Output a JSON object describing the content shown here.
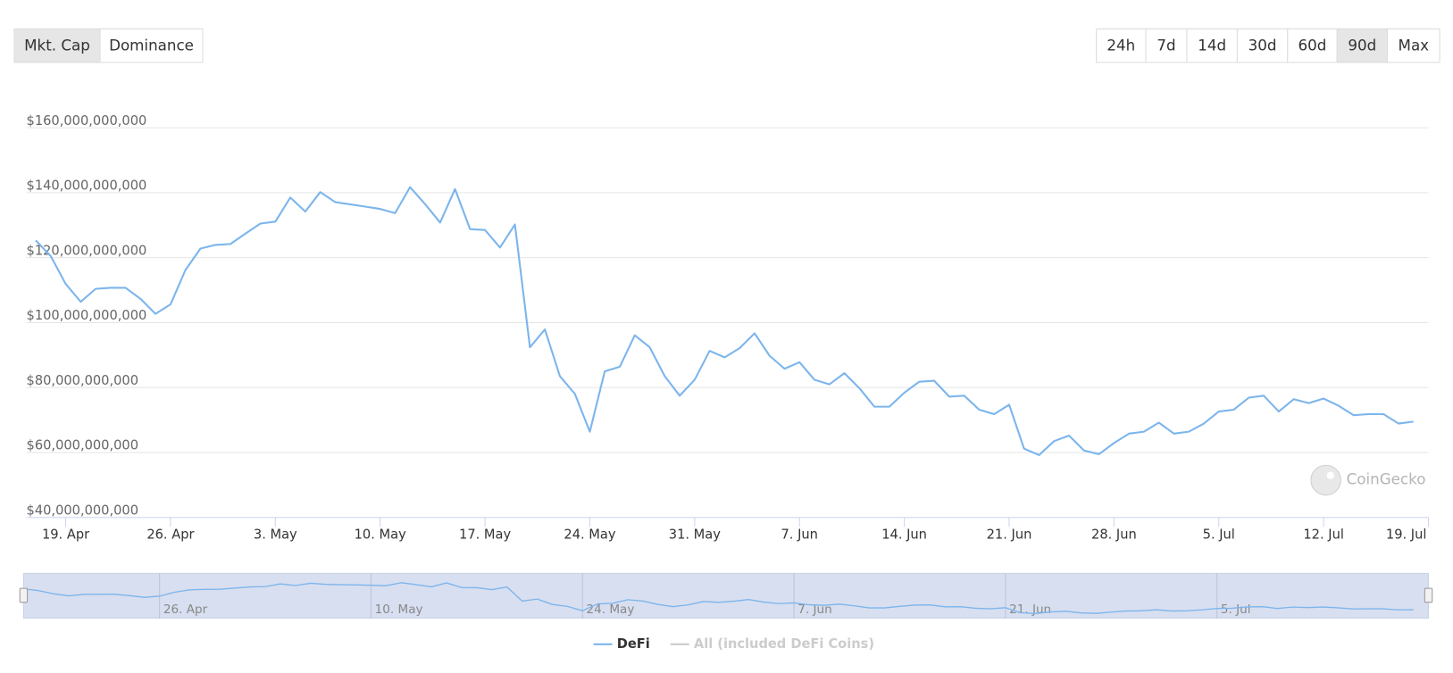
{
  "controls": {
    "metric_tabs": [
      "Mkt. Cap",
      "Dominance"
    ],
    "active_metric": 0,
    "range_tabs": [
      "24h",
      "7d",
      "14d",
      "30d",
      "60d",
      "90d",
      "Max"
    ],
    "active_range": 5
  },
  "chart_data": {
    "type": "line",
    "x": [
      "17. Apr",
      "18. Apr",
      "19. Apr",
      "20. Apr",
      "21. Apr",
      "22. Apr",
      "23. Apr",
      "24. Apr",
      "25. Apr",
      "26. Apr",
      "27. Apr",
      "28. Apr",
      "29. Apr",
      "30. Apr",
      "1. May",
      "2. May",
      "3. May",
      "4. May",
      "5. May",
      "6. May",
      "7. May",
      "8. May",
      "9. May",
      "10. May",
      "11. May",
      "12. May",
      "13. May",
      "14. May",
      "15. May",
      "16. May",
      "17. May",
      "18. May",
      "19. May",
      "20. May",
      "21. May",
      "22. May",
      "23. May",
      "24. May",
      "25. May",
      "26. May",
      "27. May",
      "28. May",
      "29. May",
      "30. May",
      "31. May",
      "1. Jun",
      "2. Jun",
      "3. Jun",
      "4. Jun",
      "5. Jun",
      "6. Jun",
      "7. Jun",
      "8. Jun",
      "9. Jun",
      "10. Jun",
      "11. Jun",
      "12. Jun",
      "13. Jun",
      "14. Jun",
      "15. Jun",
      "16. Jun",
      "17. Jun",
      "18. Jun",
      "19. Jun",
      "20. Jun",
      "21. Jun",
      "22. Jun",
      "23. Jun",
      "24. Jun",
      "25. Jun",
      "26. Jun",
      "27. Jun",
      "28. Jun",
      "29. Jun",
      "30. Jun",
      "1. Jul",
      "2. Jul",
      "3. Jul",
      "4. Jul",
      "5. Jul",
      "6. Jul",
      "7. Jul",
      "8. Jul",
      "9. Jul",
      "10. Jul",
      "11. Jul",
      "12. Jul",
      "13. Jul",
      "14. Jul",
      "15. Jul",
      "16. Jul",
      "17. Jul",
      "18. Jul",
      "19. Jul"
    ],
    "series": [
      {
        "name": "DeFi",
        "color": "#7cb5ec",
        "values": [
          125300000000,
          120500000000,
          111900000000,
          106400000000,
          110400000000,
          110700000000,
          110700000000,
          107300000000,
          102700000000,
          105600000000,
          116200000000,
          122800000000,
          123900000000,
          124200000000,
          127400000000,
          130500000000,
          131100000000,
          138500000000,
          134200000000,
          140200000000,
          137100000000,
          136400000000,
          135700000000,
          135000000000,
          133700000000,
          141700000000,
          136500000000,
          130800000000,
          141100000000,
          128800000000,
          128500000000,
          123100000000,
          130200000000,
          92400000000,
          97900000000,
          83500000000,
          78100000000,
          66400000000,
          85000000000,
          86400000000,
          96100000000,
          92400000000,
          83500000000,
          77500000000,
          82400000000,
          91300000000,
          89300000000,
          92100000000,
          96700000000,
          89800000000,
          85800000000,
          87800000000,
          82400000000,
          81000000000,
          84400000000,
          79800000000,
          74100000000,
          74100000000,
          78400000000,
          81800000000,
          82100000000,
          77200000000,
          77500000000,
          73200000000,
          71800000000,
          74700000000,
          61200000000,
          59200000000,
          63500000000,
          65200000000,
          60600000000,
          59500000000,
          62900000000,
          65800000000,
          66400000000,
          69200000000,
          65800000000,
          66400000000,
          68900000000,
          72600000000,
          73200000000,
          76900000000,
          77500000000,
          72600000000,
          76400000000,
          75200000000,
          76600000000,
          74400000000,
          71500000000,
          71800000000,
          71800000000,
          68900000000,
          69500000000,
          null
        ]
      }
    ],
    "hidden_series": [
      {
        "name": "All (included DeFi Coins)",
        "color": "#cccccc"
      }
    ],
    "ylim": [
      40000000000,
      160000000000
    ],
    "yticks": [
      {
        "value": 40000000000,
        "label": "$40,000,000,000"
      },
      {
        "value": 60000000000,
        "label": "$60,000,000,000"
      },
      {
        "value": 80000000000,
        "label": "$80,000,000,000"
      },
      {
        "value": 100000000000,
        "label": "$100,000,000,000"
      },
      {
        "value": 120000000000,
        "label": "$120,000,000,000"
      },
      {
        "value": 140000000000,
        "label": "$140,000,000,000"
      },
      {
        "value": 160000000000,
        "label": "$160,000,000,000"
      }
    ],
    "xticks": [
      "19. Apr",
      "26. Apr",
      "3. May",
      "10. May",
      "17. May",
      "24. May",
      "31. May",
      "7. Jun",
      "14. Jun",
      "21. Jun",
      "28. Jun",
      "5. Jul",
      "12. Jul",
      "19. Jul"
    ],
    "navigator_ticks": [
      "26. Apr",
      "10. May",
      "24. May",
      "7. Jun",
      "21. Jun",
      "5. Jul"
    ],
    "grid": true,
    "watermark": "CoinGecko"
  }
}
